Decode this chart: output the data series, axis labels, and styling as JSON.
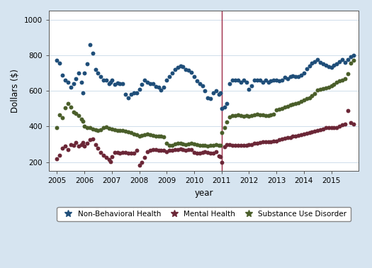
{
  "title": "",
  "xlabel": "year",
  "ylabel": "Dollars ($)",
  "ylim": [
    150,
    1050
  ],
  "xlim": [
    2004.7,
    2016.0
  ],
  "yticks": [
    200,
    400,
    600,
    800,
    1000
  ],
  "xticks": [
    2005,
    2006,
    2007,
    2008,
    2009,
    2010,
    2011,
    2012,
    2013,
    2014,
    2015
  ],
  "vline_x": 2011.0,
  "vline_color": "#9e2a47",
  "bg_color": "#d6e4f0",
  "plot_bg_color": "#ffffff",
  "nbh_color": "#1f4e79",
  "mh_color": "#6b2737",
  "sud_color": "#4a5e2a",
  "markersize": 18,
  "legend_labels": [
    "Non-Behavioral Health",
    "Mental Health",
    "Substance Use Disorder"
  ],
  "nbh_data": [
    [
      2005.0,
      770
    ],
    [
      2005.1,
      755
    ],
    [
      2005.2,
      690
    ],
    [
      2005.3,
      660
    ],
    [
      2005.4,
      650
    ],
    [
      2005.5,
      620
    ],
    [
      2005.6,
      640
    ],
    [
      2005.7,
      670
    ],
    [
      2005.8,
      700
    ],
    [
      2005.9,
      650
    ],
    [
      2005.95,
      590
    ],
    [
      2006.0,
      700
    ],
    [
      2006.1,
      750
    ],
    [
      2006.2,
      860
    ],
    [
      2006.3,
      810
    ],
    [
      2006.4,
      720
    ],
    [
      2006.5,
      700
    ],
    [
      2006.6,
      680
    ],
    [
      2006.7,
      660
    ],
    [
      2006.8,
      660
    ],
    [
      2006.9,
      640
    ],
    [
      2006.95,
      650
    ],
    [
      2007.0,
      660
    ],
    [
      2007.1,
      635
    ],
    [
      2007.2,
      645
    ],
    [
      2007.3,
      640
    ],
    [
      2007.4,
      640
    ],
    [
      2007.5,
      580
    ],
    [
      2007.6,
      560
    ],
    [
      2007.7,
      580
    ],
    [
      2007.8,
      590
    ],
    [
      2007.9,
      590
    ],
    [
      2008.0,
      610
    ],
    [
      2008.1,
      635
    ],
    [
      2008.2,
      660
    ],
    [
      2008.3,
      650
    ],
    [
      2008.4,
      640
    ],
    [
      2008.5,
      640
    ],
    [
      2008.6,
      625
    ],
    [
      2008.7,
      620
    ],
    [
      2008.8,
      605
    ],
    [
      2008.9,
      620
    ],
    [
      2009.0,
      660
    ],
    [
      2009.1,
      680
    ],
    [
      2009.2,
      700
    ],
    [
      2009.3,
      720
    ],
    [
      2009.4,
      730
    ],
    [
      2009.5,
      740
    ],
    [
      2009.6,
      735
    ],
    [
      2009.7,
      720
    ],
    [
      2009.8,
      715
    ],
    [
      2009.9,
      705
    ],
    [
      2010.0,
      680
    ],
    [
      2010.1,
      655
    ],
    [
      2010.2,
      640
    ],
    [
      2010.3,
      630
    ],
    [
      2010.4,
      600
    ],
    [
      2010.5,
      560
    ],
    [
      2010.6,
      555
    ],
    [
      2010.7,
      590
    ],
    [
      2010.8,
      600
    ],
    [
      2010.9,
      580
    ],
    [
      2010.95,
      590
    ],
    [
      2011.0,
      500
    ],
    [
      2011.1,
      510
    ],
    [
      2011.2,
      530
    ],
    [
      2011.3,
      640
    ],
    [
      2011.4,
      660
    ],
    [
      2011.5,
      660
    ],
    [
      2011.6,
      660
    ],
    [
      2011.7,
      650
    ],
    [
      2011.8,
      660
    ],
    [
      2011.9,
      650
    ],
    [
      2012.0,
      610
    ],
    [
      2012.1,
      630
    ],
    [
      2012.2,
      660
    ],
    [
      2012.3,
      660
    ],
    [
      2012.4,
      660
    ],
    [
      2012.5,
      650
    ],
    [
      2012.6,
      660
    ],
    [
      2012.7,
      650
    ],
    [
      2012.8,
      655
    ],
    [
      2012.9,
      660
    ],
    [
      2013.0,
      660
    ],
    [
      2013.1,
      655
    ],
    [
      2013.2,
      660
    ],
    [
      2013.3,
      675
    ],
    [
      2013.4,
      670
    ],
    [
      2013.5,
      680
    ],
    [
      2013.6,
      685
    ],
    [
      2013.7,
      680
    ],
    [
      2013.8,
      680
    ],
    [
      2013.9,
      690
    ],
    [
      2014.0,
      700
    ],
    [
      2014.1,
      725
    ],
    [
      2014.2,
      740
    ],
    [
      2014.3,
      755
    ],
    [
      2014.4,
      765
    ],
    [
      2014.5,
      775
    ],
    [
      2014.6,
      760
    ],
    [
      2014.7,
      750
    ],
    [
      2014.8,
      745
    ],
    [
      2014.9,
      735
    ],
    [
      2015.0,
      730
    ],
    [
      2015.1,
      745
    ],
    [
      2015.2,
      750
    ],
    [
      2015.3,
      765
    ],
    [
      2015.4,
      775
    ],
    [
      2015.5,
      760
    ],
    [
      2015.6,
      775
    ],
    [
      2015.7,
      790
    ],
    [
      2015.8,
      800
    ]
  ],
  "mh_data": [
    [
      2005.0,
      220
    ],
    [
      2005.1,
      240
    ],
    [
      2005.2,
      280
    ],
    [
      2005.3,
      290
    ],
    [
      2005.4,
      270
    ],
    [
      2005.5,
      300
    ],
    [
      2005.6,
      295
    ],
    [
      2005.7,
      310
    ],
    [
      2005.8,
      290
    ],
    [
      2005.9,
      300
    ],
    [
      2005.95,
      310
    ],
    [
      2006.0,
      290
    ],
    [
      2006.1,
      305
    ],
    [
      2006.2,
      325
    ],
    [
      2006.3,
      330
    ],
    [
      2006.4,
      300
    ],
    [
      2006.5,
      280
    ],
    [
      2006.6,
      255
    ],
    [
      2006.7,
      240
    ],
    [
      2006.8,
      225
    ],
    [
      2006.9,
      215
    ],
    [
      2006.95,
      205
    ],
    [
      2007.0,
      230
    ],
    [
      2007.1,
      255
    ],
    [
      2007.2,
      255
    ],
    [
      2007.3,
      250
    ],
    [
      2007.4,
      255
    ],
    [
      2007.5,
      255
    ],
    [
      2007.6,
      250
    ],
    [
      2007.7,
      250
    ],
    [
      2007.8,
      250
    ],
    [
      2007.9,
      265
    ],
    [
      2008.0,
      185
    ],
    [
      2008.1,
      200
    ],
    [
      2008.2,
      225
    ],
    [
      2008.3,
      260
    ],
    [
      2008.4,
      265
    ],
    [
      2008.5,
      270
    ],
    [
      2008.6,
      270
    ],
    [
      2008.7,
      268
    ],
    [
      2008.8,
      265
    ],
    [
      2008.9,
      265
    ],
    [
      2009.0,
      260
    ],
    [
      2009.1,
      265
    ],
    [
      2009.2,
      265
    ],
    [
      2009.3,
      270
    ],
    [
      2009.4,
      270
    ],
    [
      2009.5,
      275
    ],
    [
      2009.6,
      270
    ],
    [
      2009.7,
      265
    ],
    [
      2009.8,
      270
    ],
    [
      2009.9,
      270
    ],
    [
      2010.0,
      255
    ],
    [
      2010.1,
      250
    ],
    [
      2010.2,
      250
    ],
    [
      2010.3,
      255
    ],
    [
      2010.4,
      260
    ],
    [
      2010.5,
      255
    ],
    [
      2010.6,
      250
    ],
    [
      2010.7,
      250
    ],
    [
      2010.8,
      260
    ],
    [
      2010.9,
      235
    ],
    [
      2010.95,
      230
    ],
    [
      2011.0,
      200
    ],
    [
      2011.1,
      285
    ],
    [
      2011.2,
      300
    ],
    [
      2011.3,
      300
    ],
    [
      2011.4,
      295
    ],
    [
      2011.5,
      295
    ],
    [
      2011.6,
      295
    ],
    [
      2011.7,
      295
    ],
    [
      2011.8,
      295
    ],
    [
      2011.9,
      295
    ],
    [
      2012.0,
      300
    ],
    [
      2012.1,
      300
    ],
    [
      2012.2,
      305
    ],
    [
      2012.3,
      305
    ],
    [
      2012.4,
      310
    ],
    [
      2012.5,
      315
    ],
    [
      2012.6,
      315
    ],
    [
      2012.7,
      315
    ],
    [
      2012.8,
      315
    ],
    [
      2012.9,
      320
    ],
    [
      2013.0,
      320
    ],
    [
      2013.1,
      325
    ],
    [
      2013.2,
      330
    ],
    [
      2013.3,
      335
    ],
    [
      2013.4,
      340
    ],
    [
      2013.5,
      340
    ],
    [
      2013.6,
      345
    ],
    [
      2013.7,
      345
    ],
    [
      2013.8,
      350
    ],
    [
      2013.9,
      355
    ],
    [
      2014.0,
      358
    ],
    [
      2014.1,
      362
    ],
    [
      2014.2,
      365
    ],
    [
      2014.3,
      370
    ],
    [
      2014.4,
      375
    ],
    [
      2014.5,
      380
    ],
    [
      2014.6,
      382
    ],
    [
      2014.7,
      388
    ],
    [
      2014.8,
      392
    ],
    [
      2014.9,
      395
    ],
    [
      2015.0,
      395
    ],
    [
      2015.1,
      395
    ],
    [
      2015.2,
      395
    ],
    [
      2015.3,
      400
    ],
    [
      2015.4,
      410
    ],
    [
      2015.5,
      415
    ],
    [
      2015.6,
      490
    ],
    [
      2015.7,
      420
    ],
    [
      2015.8,
      415
    ]
  ],
  "sud_data": [
    [
      2005.0,
      395
    ],
    [
      2005.1,
      465
    ],
    [
      2005.2,
      450
    ],
    [
      2005.3,
      505
    ],
    [
      2005.4,
      530
    ],
    [
      2005.5,
      510
    ],
    [
      2005.6,
      480
    ],
    [
      2005.7,
      475
    ],
    [
      2005.8,
      460
    ],
    [
      2005.9,
      440
    ],
    [
      2005.95,
      430
    ],
    [
      2006.0,
      400
    ],
    [
      2006.1,
      395
    ],
    [
      2006.2,
      395
    ],
    [
      2006.3,
      385
    ],
    [
      2006.4,
      383
    ],
    [
      2006.5,
      380
    ],
    [
      2006.6,
      383
    ],
    [
      2006.7,
      393
    ],
    [
      2006.8,
      398
    ],
    [
      2006.9,
      390
    ],
    [
      2007.0,
      387
    ],
    [
      2007.1,
      383
    ],
    [
      2007.2,
      378
    ],
    [
      2007.3,
      378
    ],
    [
      2007.4,
      380
    ],
    [
      2007.5,
      375
    ],
    [
      2007.6,
      370
    ],
    [
      2007.7,
      365
    ],
    [
      2007.8,
      360
    ],
    [
      2007.9,
      355
    ],
    [
      2008.0,
      348
    ],
    [
      2008.1,
      350
    ],
    [
      2008.2,
      355
    ],
    [
      2008.3,
      358
    ],
    [
      2008.4,
      355
    ],
    [
      2008.5,
      350
    ],
    [
      2008.6,
      345
    ],
    [
      2008.7,
      345
    ],
    [
      2008.8,
      347
    ],
    [
      2008.9,
      343
    ],
    [
      2009.0,
      305
    ],
    [
      2009.1,
      295
    ],
    [
      2009.2,
      295
    ],
    [
      2009.3,
      302
    ],
    [
      2009.4,
      308
    ],
    [
      2009.5,
      308
    ],
    [
      2009.6,
      303
    ],
    [
      2009.7,
      298
    ],
    [
      2009.8,
      303
    ],
    [
      2009.9,
      308
    ],
    [
      2010.0,
      302
    ],
    [
      2010.1,
      298
    ],
    [
      2010.2,
      293
    ],
    [
      2010.3,
      293
    ],
    [
      2010.4,
      293
    ],
    [
      2010.5,
      290
    ],
    [
      2010.6,
      293
    ],
    [
      2010.7,
      293
    ],
    [
      2010.8,
      298
    ],
    [
      2010.9,
      293
    ],
    [
      2010.95,
      293
    ],
    [
      2011.0,
      368
    ],
    [
      2011.1,
      395
    ],
    [
      2011.2,
      425
    ],
    [
      2011.3,
      455
    ],
    [
      2011.4,
      462
    ],
    [
      2011.5,
      462
    ],
    [
      2011.6,
      465
    ],
    [
      2011.7,
      460
    ],
    [
      2011.8,
      458
    ],
    [
      2011.9,
      460
    ],
    [
      2012.0,
      458
    ],
    [
      2012.1,
      462
    ],
    [
      2012.2,
      465
    ],
    [
      2012.3,
      468
    ],
    [
      2012.4,
      465
    ],
    [
      2012.5,
      465
    ],
    [
      2012.6,
      462
    ],
    [
      2012.7,
      462
    ],
    [
      2012.8,
      465
    ],
    [
      2012.9,
      468
    ],
    [
      2013.0,
      492
    ],
    [
      2013.1,
      498
    ],
    [
      2013.2,
      502
    ],
    [
      2013.3,
      508
    ],
    [
      2013.4,
      515
    ],
    [
      2013.5,
      522
    ],
    [
      2013.6,
      525
    ],
    [
      2013.7,
      530
    ],
    [
      2013.8,
      535
    ],
    [
      2013.9,
      540
    ],
    [
      2014.0,
      548
    ],
    [
      2014.1,
      558
    ],
    [
      2014.2,
      562
    ],
    [
      2014.3,
      572
    ],
    [
      2014.4,
      585
    ],
    [
      2014.5,
      605
    ],
    [
      2014.6,
      608
    ],
    [
      2014.7,
      612
    ],
    [
      2014.8,
      618
    ],
    [
      2014.9,
      622
    ],
    [
      2015.0,
      628
    ],
    [
      2015.1,
      638
    ],
    [
      2015.2,
      648
    ],
    [
      2015.3,
      655
    ],
    [
      2015.4,
      662
    ],
    [
      2015.5,
      668
    ],
    [
      2015.6,
      698
    ],
    [
      2015.7,
      755
    ],
    [
      2015.8,
      770
    ]
  ]
}
